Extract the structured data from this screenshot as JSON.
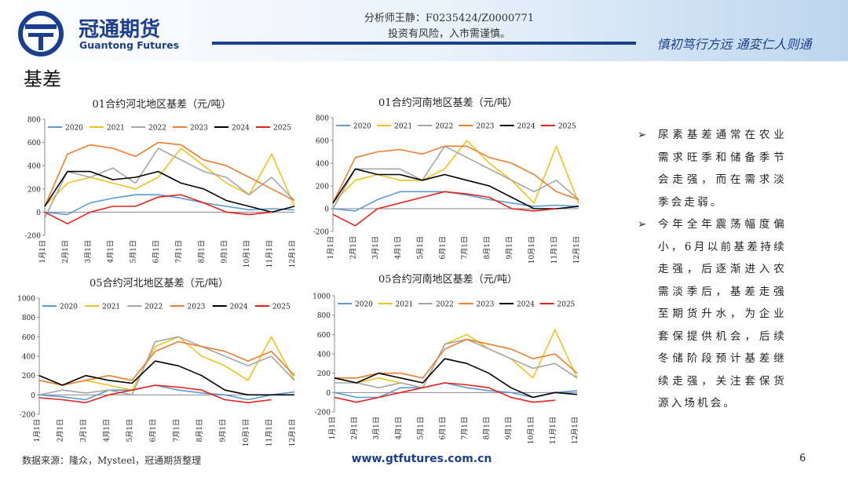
{
  "header": {
    "company_cn": "冠通期货",
    "company_en": "Guantong Futures",
    "analyst": "分析师王静：F0235424/Z0000771",
    "risk": "投资有风险，入市需谨慎。",
    "slogan": "慎初笃行方远  通変仁人则通"
  },
  "title": "基差",
  "bullets": [
    "尿素基差通常在农业需求旺季和储备季节会走强，而在需求淡季会走弱。",
    "今年全年震荡幅度偏小，6月以前基差持续走强，后逐渐进入农需淡季后，基差走强至期货升水，为企业套保提供机会，后续冬储阶段预计基差继续走强，关注套保货源入场机会。"
  ],
  "footer": {
    "source": "数据来源：隆众，Mysteel，冠通期货整理",
    "website": "www.gtfutures.com.cn",
    "page": "6"
  },
  "chart_data": [
    {
      "type": "line",
      "title": "01合约河北地区基差（元/吨）",
      "categories": [
        "1月1日",
        "2月1日",
        "3月1日",
        "4月1日",
        "5月1日",
        "6月1日",
        "7月1日",
        "8月1日",
        "9月1日",
        "10月1日",
        "11月1日",
        "12月1日"
      ],
      "ylim": [
        -200,
        800
      ],
      "yticks": [
        -200,
        0,
        200,
        400,
        600,
        800
      ],
      "series": [
        {
          "name": "2020",
          "color": "#5b9bd5",
          "values": [
            0,
            -20,
            80,
            120,
            150,
            150,
            120,
            80,
            50,
            20,
            30,
            20
          ]
        },
        {
          "name": "2021",
          "color": "#f2c21b",
          "values": [
            50,
            250,
            300,
            250,
            200,
            300,
            550,
            400,
            250,
            150,
            500,
            50
          ]
        },
        {
          "name": "2022",
          "color": "#a5a5a5",
          "values": [
            -50,
            350,
            300,
            380,
            250,
            550,
            450,
            350,
            300,
            150,
            300,
            100
          ]
        },
        {
          "name": "2023",
          "color": "#ed7d31",
          "values": [
            50,
            500,
            580,
            550,
            480,
            600,
            580,
            450,
            400,
            300,
            200,
            100
          ]
        },
        {
          "name": "2024",
          "color": "#000000",
          "values": [
            50,
            350,
            350,
            280,
            300,
            350,
            250,
            200,
            100,
            50,
            0,
            50
          ]
        },
        {
          "name": "2025",
          "color": "#e8221b",
          "values": [
            0,
            -100,
            0,
            50,
            50,
            130,
            150,
            80,
            0,
            -20,
            0,
            null
          ]
        }
      ]
    },
    {
      "type": "line",
      "title": "01合约河南地区基差（元/吨）",
      "categories": [
        "1月1日",
        "2月1日",
        "3月1日",
        "4月1日",
        "5月1日",
        "6月1日",
        "7月1日",
        "8月1日",
        "9月1日",
        "10月1日",
        "11月1日",
        "12月1日"
      ],
      "ylim": [
        -200,
        800
      ],
      "yticks": [
        -200,
        0,
        200,
        400,
        600,
        800
      ],
      "series": [
        {
          "name": "2020",
          "color": "#5b9bd5",
          "values": [
            0,
            -20,
            80,
            150,
            150,
            150,
            120,
            80,
            50,
            20,
            30,
            20
          ]
        },
        {
          "name": "2021",
          "color": "#f2c21b",
          "values": [
            50,
            250,
            300,
            250,
            250,
            350,
            600,
            400,
            250,
            50,
            550,
            50
          ]
        },
        {
          "name": "2022",
          "color": "#a5a5a5",
          "values": [
            0,
            350,
            350,
            350,
            250,
            550,
            450,
            350,
            250,
            150,
            250,
            80
          ]
        },
        {
          "name": "2023",
          "color": "#ed7d31",
          "values": [
            50,
            450,
            500,
            520,
            480,
            550,
            550,
            450,
            400,
            300,
            150,
            80
          ]
        },
        {
          "name": "2024",
          "color": "#000000",
          "values": [
            50,
            350,
            300,
            300,
            250,
            300,
            250,
            200,
            100,
            0,
            0,
            20
          ]
        },
        {
          "name": "2025",
          "color": "#e8221b",
          "values": [
            -50,
            -150,
            0,
            50,
            100,
            150,
            130,
            100,
            0,
            -20,
            0,
            null
          ]
        }
      ]
    },
    {
      "type": "line",
      "title": "05合约河北地区基差（元/吨）",
      "categories": [
        "1月1日",
        "2月1日",
        "3月1日",
        "4月1日",
        "5月1日",
        "6月1日",
        "7月1日",
        "8月1日",
        "9月1日",
        "10月1日",
        "11月1日",
        "12月1日"
      ],
      "ylim": [
        -200,
        1000
      ],
      "yticks": [
        -200,
        0,
        200,
        400,
        600,
        800,
        1000
      ],
      "series": [
        {
          "name": "2020",
          "color": "#5b9bd5",
          "values": [
            0,
            -20,
            -50,
            50,
            50,
            100,
            50,
            20,
            0,
            -50,
            0,
            30
          ]
        },
        {
          "name": "2021",
          "color": "#f2c21b",
          "values": [
            150,
            100,
            150,
            100,
            50,
            500,
            600,
            400,
            300,
            150,
            600,
            150
          ]
        },
        {
          "name": "2022",
          "color": "#a5a5a5",
          "values": [
            0,
            50,
            20,
            50,
            0,
            550,
            600,
            500,
            400,
            300,
            400,
            150
          ]
        },
        {
          "name": "2023",
          "color": "#ed7d31",
          "values": [
            150,
            100,
            150,
            200,
            150,
            450,
            550,
            500,
            450,
            350,
            450,
            200
          ]
        },
        {
          "name": "2024",
          "color": "#000000",
          "values": [
            200,
            100,
            200,
            150,
            120,
            350,
            300,
            200,
            50,
            0,
            0,
            0
          ]
        },
        {
          "name": "2025",
          "color": "#e8221b",
          "values": [
            -30,
            -50,
            -80,
            0,
            50,
            100,
            80,
            50,
            -50,
            -80,
            -50,
            null
          ]
        }
      ]
    },
    {
      "type": "line",
      "title": "05合约河南地区基差（元/吨）",
      "categories": [
        "1月1日",
        "2月1日",
        "3月1日",
        "4月1日",
        "5月1日",
        "6月1日",
        "7月1日",
        "8月1日",
        "9月1日",
        "10月1日",
        "11月1日",
        "12月1日"
      ],
      "ylim": [
        -200,
        1000
      ],
      "yticks": [
        -200,
        0,
        200,
        400,
        600,
        800,
        1000
      ],
      "series": [
        {
          "name": "2020",
          "color": "#5b9bd5",
          "values": [
            0,
            -50,
            -50,
            50,
            50,
            100,
            50,
            20,
            0,
            -50,
            0,
            20
          ]
        },
        {
          "name": "2021",
          "color": "#f2c21b",
          "values": [
            150,
            100,
            150,
            100,
            50,
            500,
            600,
            450,
            350,
            150,
            650,
            150
          ]
        },
        {
          "name": "2022",
          "color": "#a5a5a5",
          "values": [
            100,
            100,
            50,
            100,
            50,
            500,
            550,
            450,
            350,
            250,
            300,
            150
          ]
        },
        {
          "name": "2023",
          "color": "#ed7d31",
          "values": [
            150,
            150,
            200,
            200,
            150,
            450,
            550,
            500,
            450,
            350,
            400,
            200
          ]
        },
        {
          "name": "2024",
          "color": "#000000",
          "values": [
            150,
            100,
            200,
            150,
            100,
            350,
            300,
            200,
            50,
            -50,
            0,
            -20
          ]
        },
        {
          "name": "2025",
          "color": "#e8221b",
          "values": [
            -50,
            -100,
            -50,
            0,
            50,
            100,
            80,
            50,
            -50,
            -100,
            -80,
            null
          ]
        }
      ]
    }
  ]
}
